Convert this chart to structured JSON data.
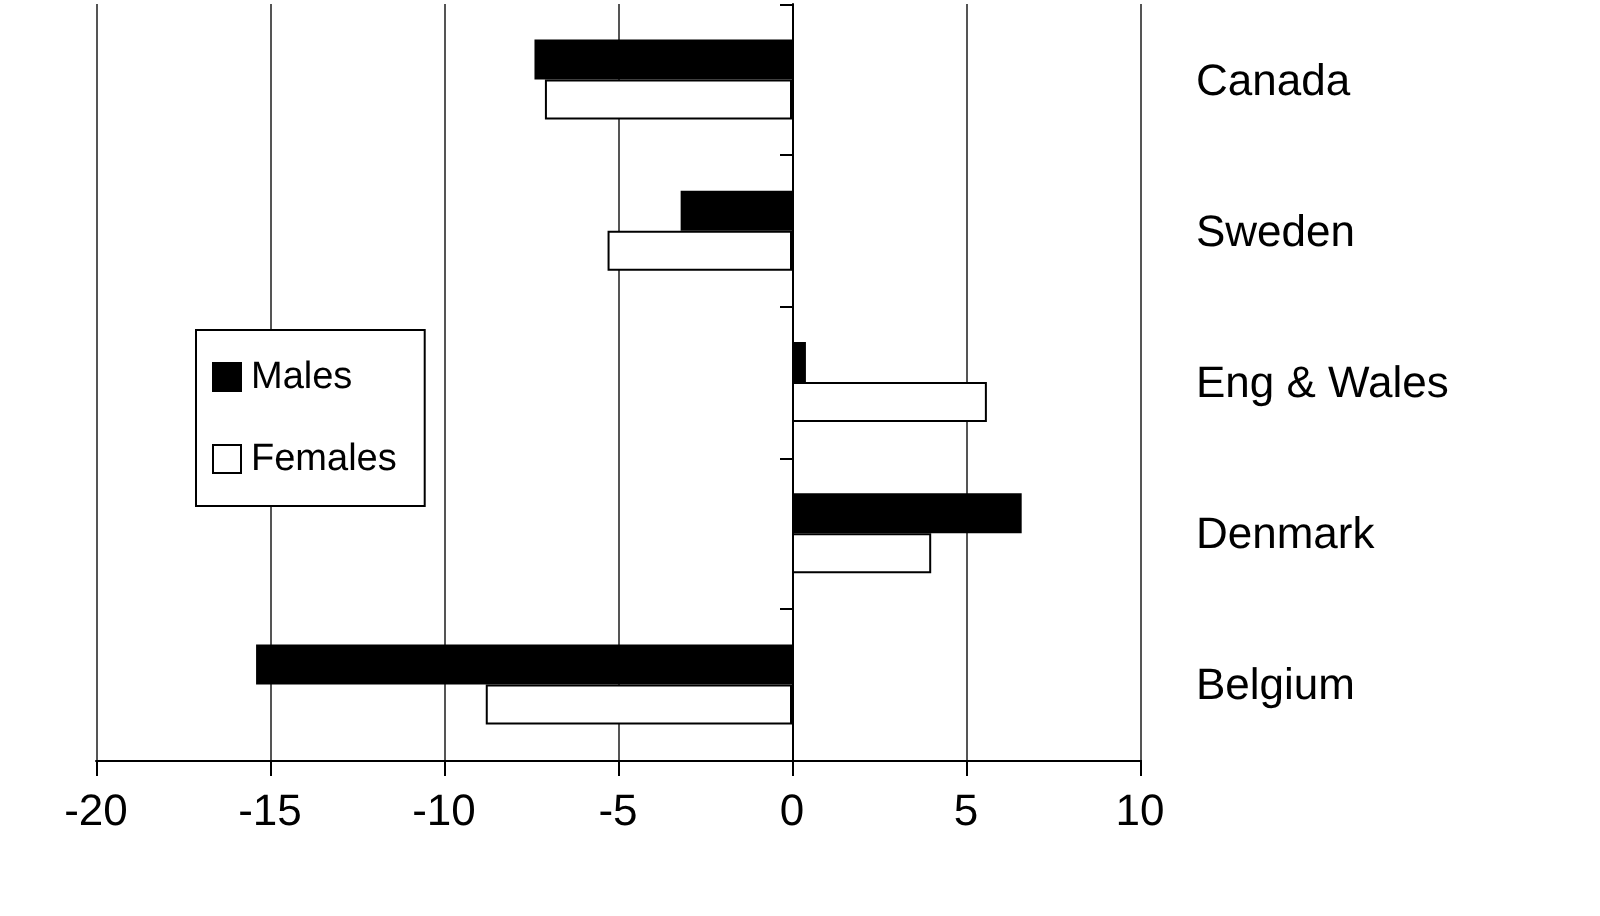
{
  "chart_data": {
    "type": "bar",
    "orientation": "horizontal",
    "categories": [
      "Canada",
      "Sweden",
      "Eng & Wales",
      "Denmark",
      "Belgium"
    ],
    "series": [
      {
        "name": "Males",
        "color": "#000000",
        "values": [
          -7.4,
          -3.2,
          0.4,
          6.6,
          -15.4
        ]
      },
      {
        "name": "Females",
        "color": "#ffffff",
        "values": [
          -7.1,
          -5.3,
          5.6,
          4.0,
          -8.8
        ]
      }
    ],
    "xlim": [
      -20,
      10
    ],
    "xticks": [
      -20,
      -15,
      -10,
      -5,
      0,
      5,
      10
    ],
    "grid": "x",
    "legend": "left"
  }
}
